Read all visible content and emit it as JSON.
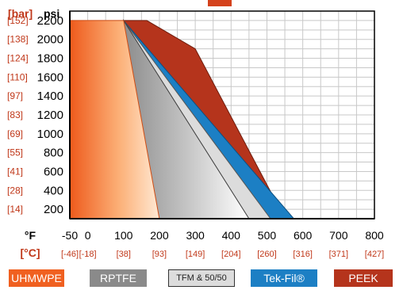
{
  "chart_data": {
    "type": "area",
    "y_label_psi": "psi",
    "y_label_bar": "[bar]",
    "x_label_f": "°F",
    "x_label_c": "[°C]",
    "y_ticks_psi": [
      200,
      400,
      600,
      800,
      1000,
      1200,
      1400,
      1600,
      1800,
      2000,
      2200
    ],
    "y_ticks_bar": [
      "[14]",
      "[28]",
      "[41]",
      "[55]",
      "[69]",
      "[83]",
      "[97]",
      "[110]",
      "[124]",
      "[138]",
      "[152]"
    ],
    "x_ticks_f": [
      -50,
      0,
      100,
      200,
      300,
      400,
      500,
      600,
      700,
      800
    ],
    "x_ticks_c": [
      "[-46]",
      "[-18]",
      "[38]",
      "[93]",
      "[149]",
      "[204]",
      "[260]",
      "[316]",
      "[371]",
      "[427]"
    ],
    "xlim": [
      -50,
      800
    ],
    "ylim": [
      100,
      2300
    ],
    "grid": true,
    "series": [
      {
        "name": "PEEK",
        "color": "#b5341c",
        "points": [
          [
            100,
            2200
          ],
          [
            165,
            2200
          ],
          [
            300,
            1900
          ],
          [
            550,
            100
          ]
        ]
      },
      {
        "name": "Tek-Fil®",
        "color": "#1c7fc4",
        "points": [
          [
            100,
            2200
          ],
          [
            575,
            100
          ],
          [
            700,
            100
          ]
        ]
      },
      {
        "name": "TFM & 50/50",
        "color": "#dcdcdc",
        "points": [
          [
            100,
            2200
          ],
          [
            510,
            100
          ]
        ]
      },
      {
        "name": "RPTFE",
        "color": "#8a8a8a",
        "points": [
          [
            100,
            2200
          ],
          [
            450,
            100
          ]
        ]
      },
      {
        "name": "UHMWPE",
        "color": "#f06020",
        "points": [
          [
            -50,
            2200
          ],
          [
            100,
            2200
          ],
          [
            200,
            100
          ]
        ]
      }
    ]
  },
  "legend": [
    {
      "label": "UHMWPE",
      "bg": "#f06020",
      "fg": "#ffffff",
      "border": "#f06020"
    },
    {
      "label": "RPTFE",
      "bg": "#8a8a8a",
      "fg": "#ffffff",
      "border": "#8a8a8a"
    },
    {
      "label": "TFM & 50/50",
      "bg": "#dcdcdc",
      "fg": "#222222",
      "border": "#333333"
    },
    {
      "label": "Tek-Fil®",
      "bg": "#1c7fc4",
      "fg": "#ffffff",
      "border": "#1c7fc4"
    },
    {
      "label": "PEEK",
      "bg": "#b5341c",
      "fg": "#ffffff",
      "border": "#b5341c"
    }
  ]
}
